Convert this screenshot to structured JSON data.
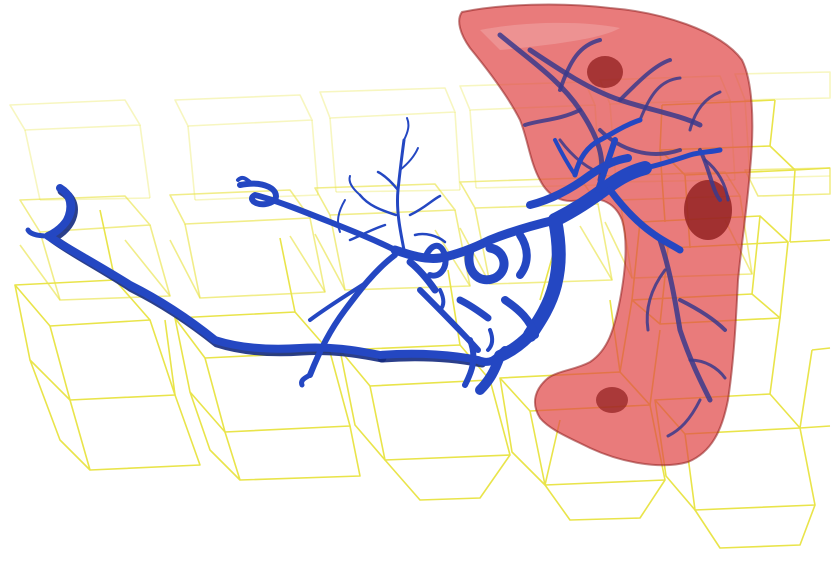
{
  "scene": {
    "background": "#ffffff",
    "grid_color": "#e9e44a",
    "liver_fill": "#e04848",
    "liver_dark": "#8f1e1e",
    "vessel_color": "#2447c2",
    "vessel_shadow": "#142a7e",
    "inner_vessel_color": "#3a3a8c"
  }
}
